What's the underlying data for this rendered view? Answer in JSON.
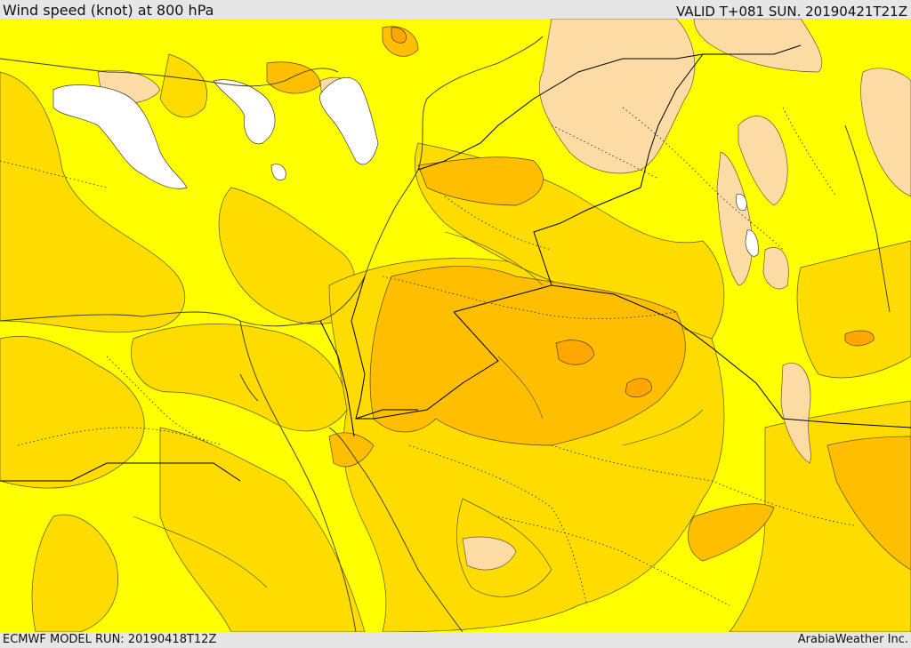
{
  "header": {
    "title": "Wind speed (knot) at 800 hPa",
    "valid": "VALID T+081 SUN. 20190421T21Z"
  },
  "footer": {
    "model_run": "ECMWF MODEL RUN: 20190418T12Z",
    "credit": "ArabiaWeather Inc."
  },
  "colors": {
    "band_lt10": "#ffffff",
    "band_10_15": "#fcdca4",
    "band_15_20": "#ffff00",
    "band_20_25": "#ffdc00",
    "band_25_30": "#ffbf00",
    "band_30_35": "#ffa600",
    "borders": "#000000",
    "coast": "#3a3a1a"
  },
  "map": {
    "projection": "lat-lon",
    "region": "Eastern Mediterranean / Levant / Arabian Peninsula",
    "field": "wind speed 800 hPa"
  }
}
